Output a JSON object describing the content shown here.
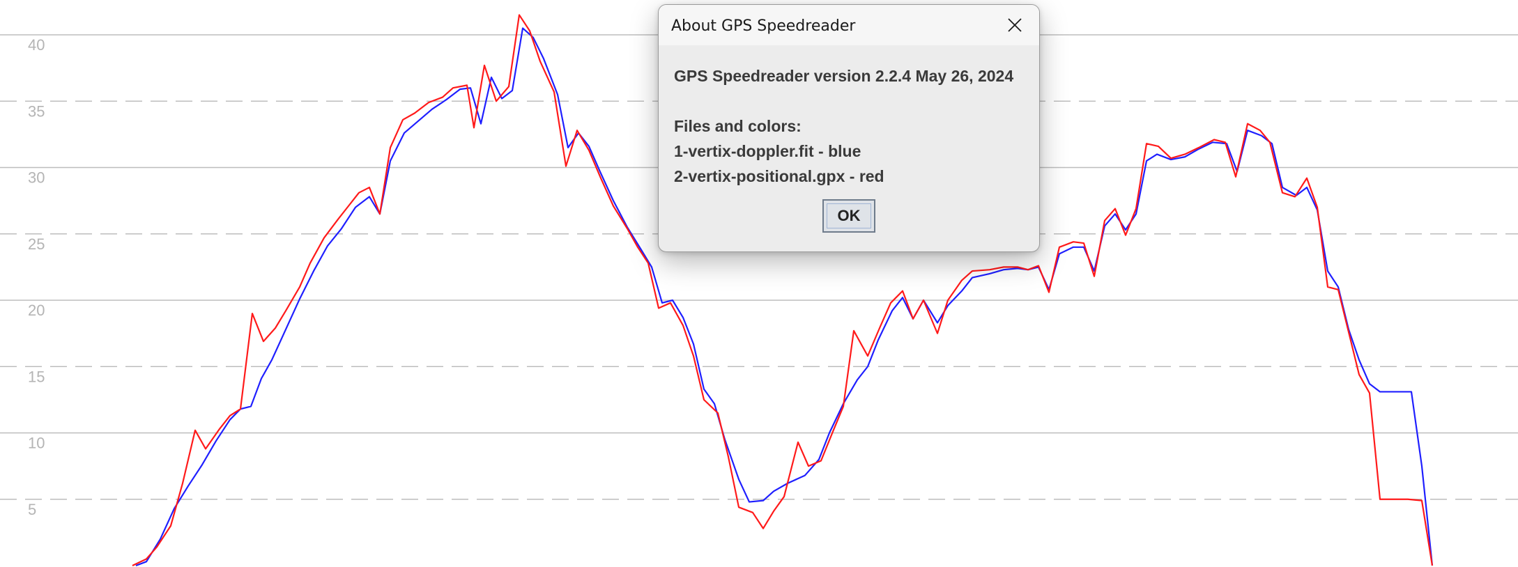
{
  "chart_data": {
    "type": "line",
    "ylim": [
      0,
      42.5
    ],
    "xlim": [
      0,
      2178
    ],
    "grid": true,
    "y_ticks": [
      {
        "value": 40,
        "label": "40",
        "style": "solid"
      },
      {
        "value": 35,
        "label": "35",
        "style": "dashed"
      },
      {
        "value": 30,
        "label": "30",
        "style": "solid"
      },
      {
        "value": 25,
        "label": "25",
        "style": "dashed"
      },
      {
        "value": 20,
        "label": "20",
        "style": "solid"
      },
      {
        "value": 15,
        "label": "15",
        "style": "dashed"
      },
      {
        "value": 10,
        "label": "10",
        "style": "solid"
      },
      {
        "value": 5,
        "label": "5",
        "style": "dashed"
      }
    ],
    "series": [
      {
        "color": "#1f1fff",
        "points": [
          [
            195,
            0
          ],
          [
            210,
            0.3
          ],
          [
            230,
            2
          ],
          [
            250,
            4.3
          ],
          [
            270,
            6
          ],
          [
            290,
            7.6
          ],
          [
            310,
            9.4
          ],
          [
            330,
            11
          ],
          [
            345,
            11.8
          ],
          [
            360,
            12
          ],
          [
            375,
            14.1
          ],
          [
            390,
            15.5
          ],
          [
            410,
            17.8
          ],
          [
            430,
            20.1
          ],
          [
            450,
            22.2
          ],
          [
            470,
            24.1
          ],
          [
            490,
            25.4
          ],
          [
            510,
            27
          ],
          [
            530,
            27.8
          ],
          [
            545,
            26.5
          ],
          [
            560,
            30.5
          ],
          [
            580,
            32.6
          ],
          [
            600,
            33.5
          ],
          [
            620,
            34.4
          ],
          [
            640,
            35.1
          ],
          [
            660,
            35.9
          ],
          [
            675,
            36
          ],
          [
            690,
            33.3
          ],
          [
            705,
            36.8
          ],
          [
            720,
            35.2
          ],
          [
            735,
            35.8
          ],
          [
            750,
            40.5
          ],
          [
            765,
            39.8
          ],
          [
            780,
            38.2
          ],
          [
            800,
            35.5
          ],
          [
            815,
            31.5
          ],
          [
            830,
            32.6
          ],
          [
            845,
            31.6
          ],
          [
            860,
            29.8
          ],
          [
            880,
            27.5
          ],
          [
            900,
            25.5
          ],
          [
            920,
            23.8
          ],
          [
            935,
            22.5
          ],
          [
            950,
            19.8
          ],
          [
            965,
            20
          ],
          [
            980,
            18.7
          ],
          [
            995,
            16.7
          ],
          [
            1010,
            13.3
          ],
          [
            1025,
            12.2
          ],
          [
            1040,
            9.5
          ],
          [
            1060,
            6.5
          ],
          [
            1075,
            4.8
          ],
          [
            1095,
            4.9
          ],
          [
            1110,
            5.6
          ],
          [
            1130,
            6.2
          ],
          [
            1155,
            6.8
          ],
          [
            1175,
            8
          ],
          [
            1190,
            10
          ],
          [
            1210,
            12.2
          ],
          [
            1230,
            14
          ],
          [
            1245,
            15
          ],
          [
            1260,
            17
          ],
          [
            1280,
            19.2
          ],
          [
            1295,
            20.2
          ],
          [
            1310,
            18.6
          ],
          [
            1325,
            20
          ],
          [
            1345,
            18.3
          ],
          [
            1360,
            19.6
          ],
          [
            1380,
            20.7
          ],
          [
            1395,
            21.7
          ],
          [
            1420,
            22
          ],
          [
            1440,
            22.3
          ],
          [
            1460,
            22.4
          ],
          [
            1475,
            22.3
          ],
          [
            1490,
            22.5
          ],
          [
            1505,
            20.8
          ],
          [
            1520,
            23.5
          ],
          [
            1540,
            24
          ],
          [
            1555,
            24
          ],
          [
            1570,
            22.2
          ],
          [
            1585,
            25.6
          ],
          [
            1600,
            26.5
          ],
          [
            1615,
            25.3
          ],
          [
            1630,
            26.5
          ],
          [
            1645,
            30.5
          ],
          [
            1660,
            31
          ],
          [
            1680,
            30.6
          ],
          [
            1700,
            30.8
          ],
          [
            1720,
            31.4
          ],
          [
            1740,
            31.9
          ],
          [
            1760,
            31.8
          ],
          [
            1775,
            29.7
          ],
          [
            1790,
            32.8
          ],
          [
            1810,
            32.4
          ],
          [
            1825,
            31.8
          ],
          [
            1840,
            28.5
          ],
          [
            1860,
            27.9
          ],
          [
            1875,
            28.5
          ],
          [
            1890,
            26.8
          ],
          [
            1905,
            22.2
          ],
          [
            1920,
            21
          ],
          [
            1935,
            17.8
          ],
          [
            1950,
            15.5
          ],
          [
            1965,
            13.7
          ],
          [
            1980,
            13.1
          ],
          [
            2000,
            13.1
          ],
          [
            2025,
            13.1
          ],
          [
            2040,
            7.5
          ],
          [
            2055,
            0
          ]
        ]
      },
      {
        "color": "#ff1a1a",
        "points": [
          [
            190,
            0
          ],
          [
            210,
            0.5
          ],
          [
            225,
            1.4
          ],
          [
            245,
            3
          ],
          [
            262,
            6.2
          ],
          [
            280,
            10.2
          ],
          [
            295,
            8.8
          ],
          [
            315,
            10.3
          ],
          [
            330,
            11.3
          ],
          [
            345,
            11.8
          ],
          [
            362,
            19
          ],
          [
            378,
            16.9
          ],
          [
            395,
            17.9
          ],
          [
            410,
            19.2
          ],
          [
            430,
            21
          ],
          [
            445,
            22.8
          ],
          [
            465,
            24.7
          ],
          [
            485,
            26.1
          ],
          [
            500,
            27.1
          ],
          [
            515,
            28.1
          ],
          [
            530,
            28.5
          ],
          [
            545,
            26.5
          ],
          [
            560,
            31.5
          ],
          [
            578,
            33.6
          ],
          [
            595,
            34.1
          ],
          [
            615,
            34.9
          ],
          [
            635,
            35.3
          ],
          [
            650,
            36
          ],
          [
            670,
            36.2
          ],
          [
            680,
            33
          ],
          [
            695,
            37.7
          ],
          [
            712,
            35
          ],
          [
            730,
            36.1
          ],
          [
            745,
            41.5
          ],
          [
            760,
            40.3
          ],
          [
            775,
            38
          ],
          [
            795,
            35.7
          ],
          [
            812,
            30.1
          ],
          [
            828,
            32.8
          ],
          [
            845,
            31.3
          ],
          [
            862,
            29.2
          ],
          [
            880,
            27.1
          ],
          [
            900,
            25.4
          ],
          [
            915,
            24
          ],
          [
            930,
            22.8
          ],
          [
            945,
            19.4
          ],
          [
            962,
            19.8
          ],
          [
            980,
            18.1
          ],
          [
            995,
            15.8
          ],
          [
            1010,
            12.5
          ],
          [
            1030,
            11.5
          ],
          [
            1045,
            8.2
          ],
          [
            1060,
            4.4
          ],
          [
            1080,
            4
          ],
          [
            1095,
            2.8
          ],
          [
            1110,
            4.1
          ],
          [
            1125,
            5.2
          ],
          [
            1145,
            9.3
          ],
          [
            1160,
            7.5
          ],
          [
            1178,
            7.9
          ],
          [
            1195,
            10.1
          ],
          [
            1210,
            12
          ],
          [
            1225,
            17.7
          ],
          [
            1245,
            15.8
          ],
          [
            1262,
            17.9
          ],
          [
            1278,
            19.8
          ],
          [
            1295,
            20.7
          ],
          [
            1310,
            18.6
          ],
          [
            1325,
            20
          ],
          [
            1345,
            17.5
          ],
          [
            1360,
            20
          ],
          [
            1380,
            21.5
          ],
          [
            1395,
            22.2
          ],
          [
            1420,
            22.3
          ],
          [
            1440,
            22.5
          ],
          [
            1460,
            22.5
          ],
          [
            1475,
            22.3
          ],
          [
            1490,
            22.6
          ],
          [
            1505,
            20.6
          ],
          [
            1520,
            24
          ],
          [
            1540,
            24.4
          ],
          [
            1555,
            24.3
          ],
          [
            1570,
            21.8
          ],
          [
            1585,
            26
          ],
          [
            1600,
            26.9
          ],
          [
            1615,
            24.9
          ],
          [
            1630,
            26.9
          ],
          [
            1645,
            31.8
          ],
          [
            1662,
            31.6
          ],
          [
            1680,
            30.7
          ],
          [
            1700,
            31
          ],
          [
            1720,
            31.5
          ],
          [
            1742,
            32.1
          ],
          [
            1758,
            31.9
          ],
          [
            1773,
            29.3
          ],
          [
            1790,
            33.3
          ],
          [
            1808,
            32.8
          ],
          [
            1822,
            31.9
          ],
          [
            1840,
            28.1
          ],
          [
            1858,
            27.8
          ],
          [
            1875,
            29.2
          ],
          [
            1890,
            27
          ],
          [
            1905,
            21
          ],
          [
            1920,
            20.8
          ],
          [
            1935,
            17.6
          ],
          [
            1950,
            14.4
          ],
          [
            1965,
            13
          ],
          [
            1980,
            5
          ],
          [
            2000,
            5
          ],
          [
            2020,
            5
          ],
          [
            2040,
            4.9
          ],
          [
            2055,
            0
          ]
        ]
      }
    ]
  },
  "dialog": {
    "title": "About GPS Speedreader",
    "version_line": "GPS Speedreader version 2.2.4 May 26, 2024",
    "files_heading": "Files and colors:",
    "file_1": "1-vertix-doppler.fit - blue",
    "file_2": "2-vertix-positional.gpx - red",
    "ok_label": "OK",
    "close_icon": "close-icon"
  }
}
